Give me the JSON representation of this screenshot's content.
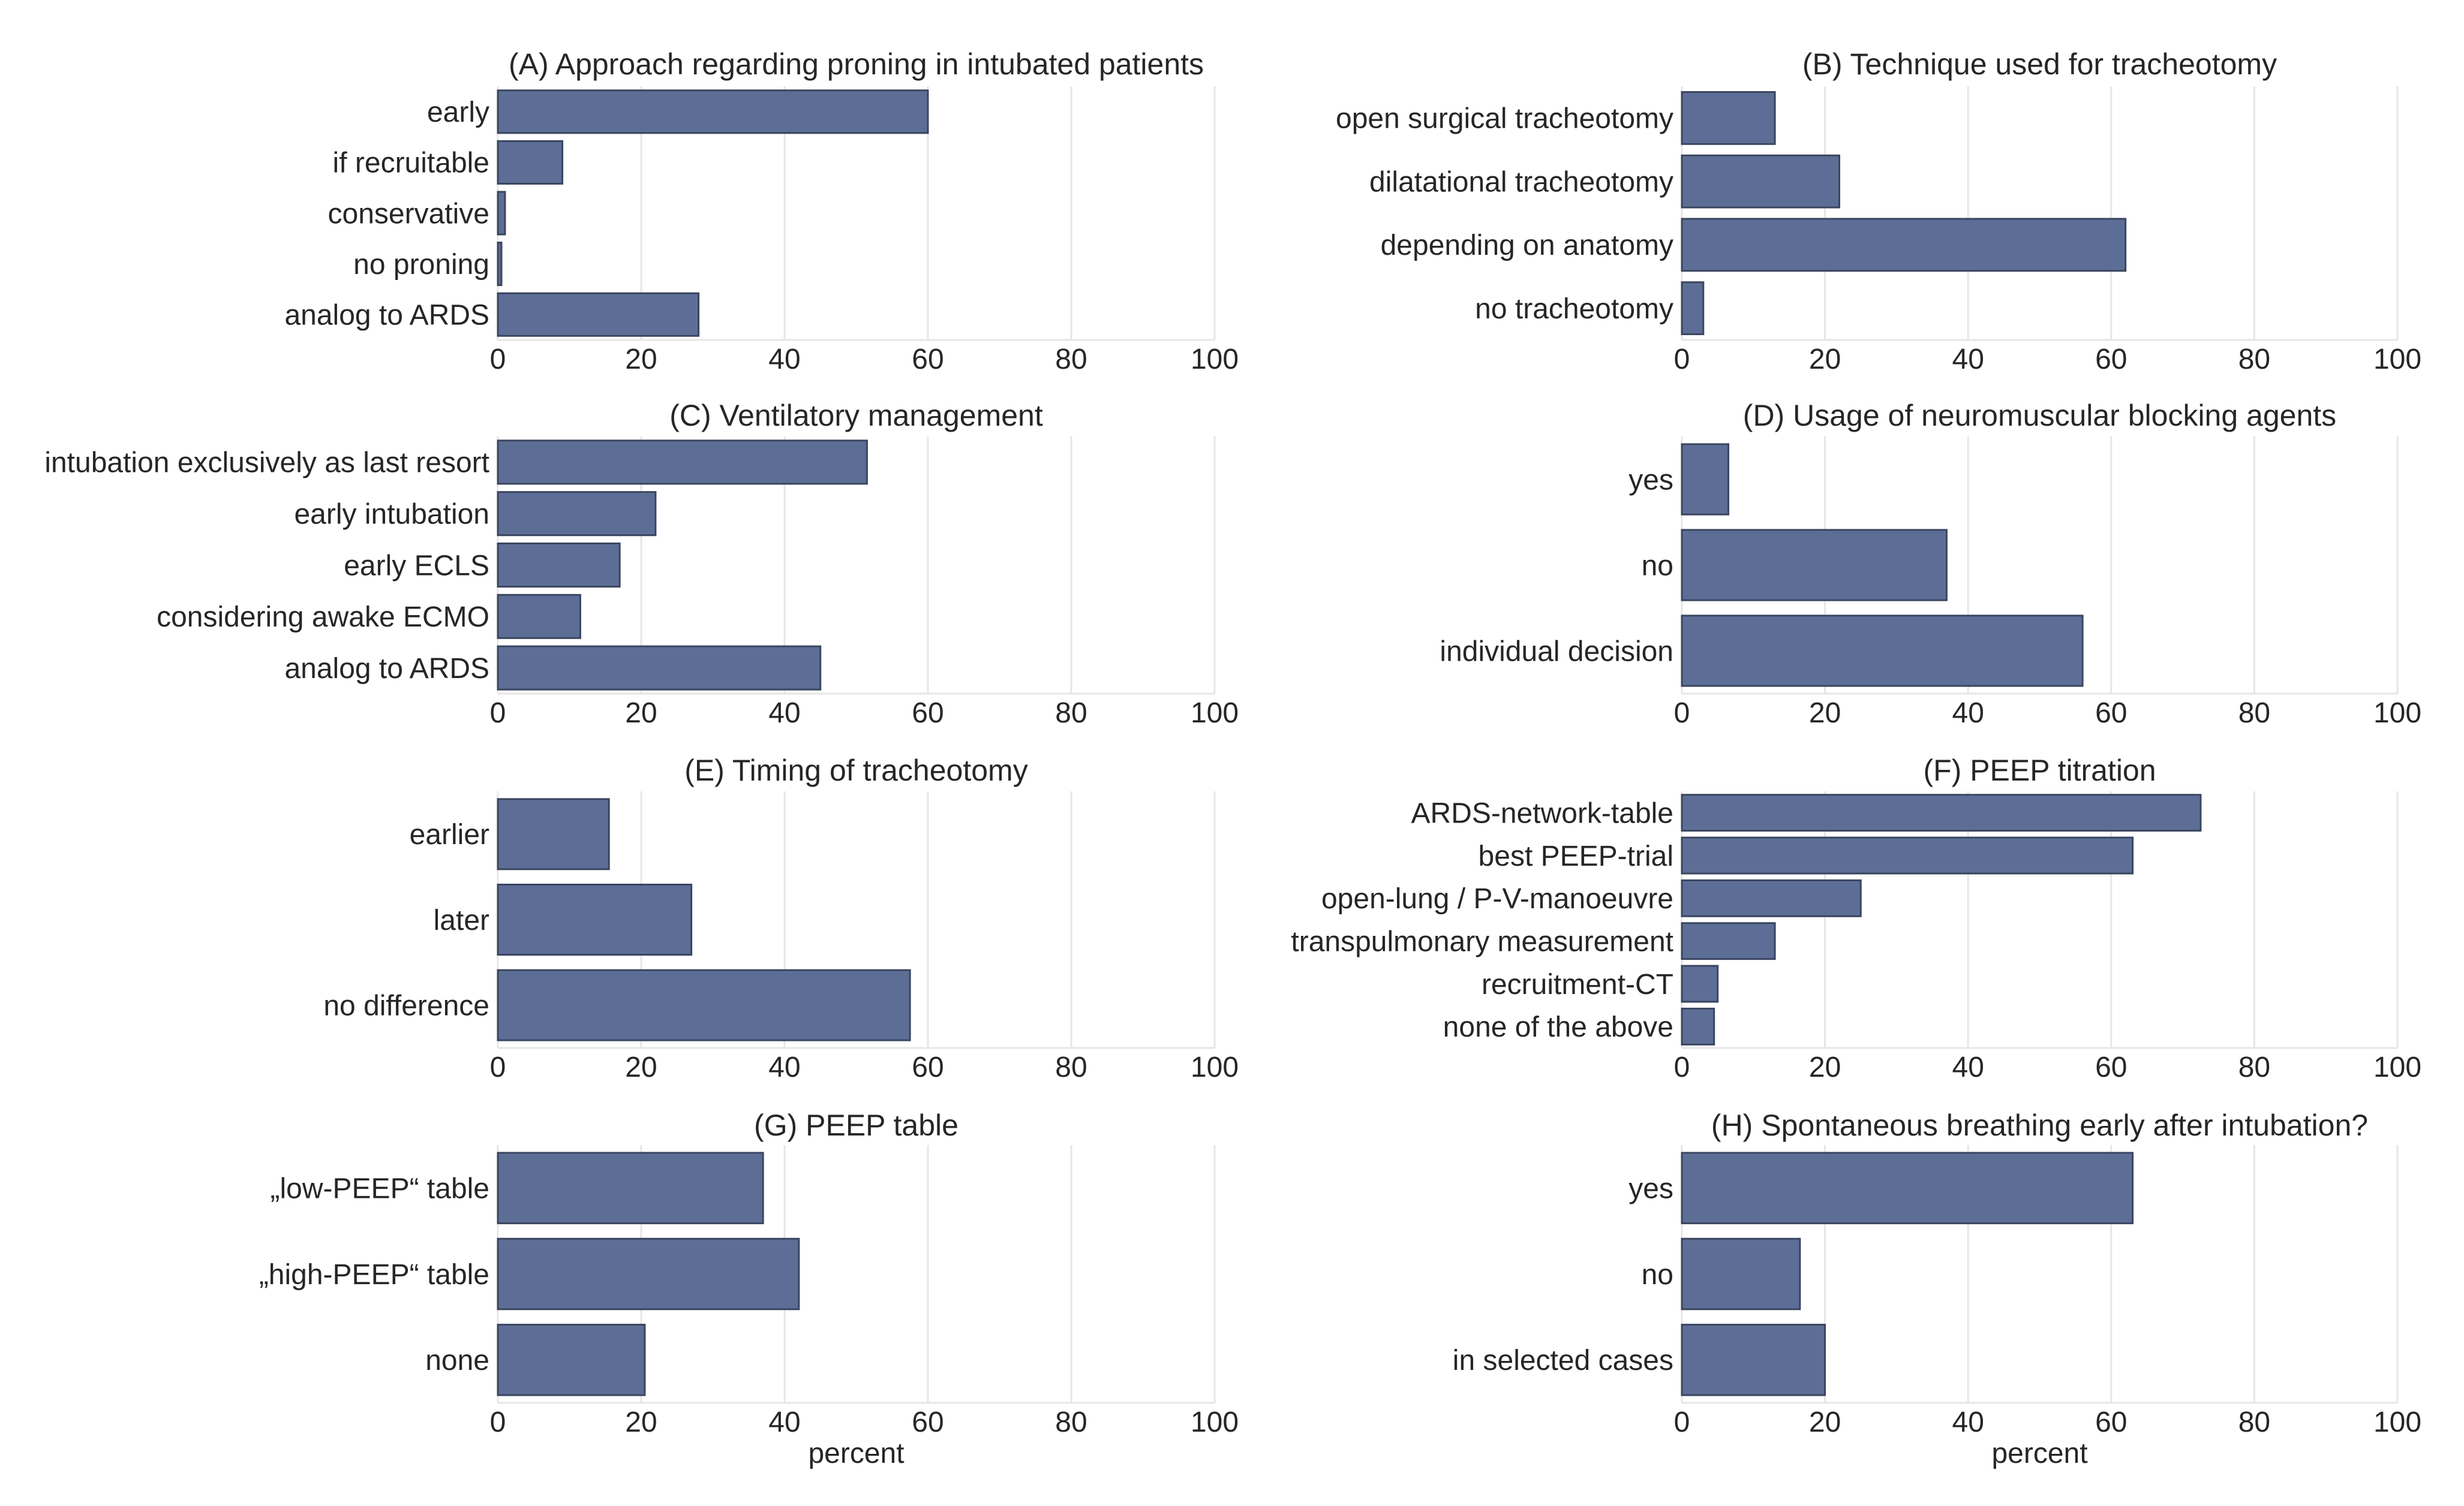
{
  "colors": {
    "bar_fill": "#5d6e96",
    "bar_stroke": "#3a4560",
    "grid": "#e6e6e6",
    "text": "#262626"
  },
  "chart_data": [
    {
      "type": "bar",
      "orientation": "horizontal",
      "title": "(A) Approach regarding proning in intubated patients",
      "categories": [
        "early",
        "if recruitable",
        "conservative",
        "no proning",
        "analog to ARDS"
      ],
      "values": [
        60,
        9,
        1,
        0.5,
        28
      ],
      "xlim": [
        0,
        100
      ],
      "xticks": [
        "0",
        "20",
        "40",
        "60",
        "80",
        "100"
      ],
      "xlabel": ""
    },
    {
      "type": "bar",
      "orientation": "horizontal",
      "title": "(B) Technique used for tracheotomy",
      "categories": [
        "open surgical tracheotomy",
        "dilatational tracheotomy",
        "depending on anatomy",
        "no tracheotomy"
      ],
      "values": [
        13,
        22,
        62,
        3
      ],
      "xlim": [
        0,
        100
      ],
      "xticks": [
        "0",
        "20",
        "40",
        "60",
        "80",
        "100"
      ],
      "xlabel": ""
    },
    {
      "type": "bar",
      "orientation": "horizontal",
      "title": "(C) Ventilatory management",
      "categories": [
        "intubation exclusively as last resort",
        "early intubation",
        "early ECLS",
        "considering awake ECMO",
        "analog to ARDS"
      ],
      "values": [
        51.5,
        22,
        17,
        11.5,
        45
      ],
      "xlim": [
        0,
        100
      ],
      "xticks": [
        "0",
        "20",
        "40",
        "60",
        "80",
        "100"
      ],
      "xlabel": ""
    },
    {
      "type": "bar",
      "orientation": "horizontal",
      "title": "(D) Usage of neuromuscular blocking agents",
      "categories": [
        "yes",
        "no",
        "individual decision"
      ],
      "values": [
        6.5,
        37,
        56
      ],
      "xlim": [
        0,
        100
      ],
      "xticks": [
        "0",
        "20",
        "40",
        "60",
        "80",
        "100"
      ],
      "xlabel": ""
    },
    {
      "type": "bar",
      "orientation": "horizontal",
      "title": "(E) Timing of tracheotomy",
      "categories": [
        "earlier",
        "later",
        "no difference"
      ],
      "values": [
        15.5,
        27,
        57.5
      ],
      "xlim": [
        0,
        100
      ],
      "xticks": [
        "0",
        "20",
        "40",
        "60",
        "80",
        "100"
      ],
      "xlabel": ""
    },
    {
      "type": "bar",
      "orientation": "horizontal",
      "title": "(F) PEEP titration",
      "categories": [
        "ARDS-network-table",
        "best PEEP-trial",
        "open-lung / P-V-manoeuvre",
        "transpulmonary measurement",
        "recruitment-CT",
        "none of the above"
      ],
      "values": [
        72.5,
        63,
        25,
        13,
        5,
        4.5
      ],
      "xlim": [
        0,
        100
      ],
      "xticks": [
        "0",
        "20",
        "40",
        "60",
        "80",
        "100"
      ],
      "xlabel": ""
    },
    {
      "type": "bar",
      "orientation": "horizontal",
      "title": "(G) PEEP table",
      "categories": [
        "„low-PEEP“ table",
        "„high-PEEP“ table",
        "none"
      ],
      "values": [
        37,
        42,
        20.5
      ],
      "xlim": [
        0,
        100
      ],
      "xticks": [
        "0",
        "20",
        "40",
        "60",
        "80",
        "100"
      ],
      "xlabel": "percent"
    },
    {
      "type": "bar",
      "orientation": "horizontal",
      "title": "(H) Spontaneous breathing early after intubation?",
      "categories": [
        "yes",
        "no",
        "in selected cases"
      ],
      "values": [
        63,
        16.5,
        20
      ],
      "xlim": [
        0,
        100
      ],
      "xticks": [
        "0",
        "20",
        "40",
        "60",
        "80",
        "100"
      ],
      "xlabel": "percent"
    }
  ]
}
